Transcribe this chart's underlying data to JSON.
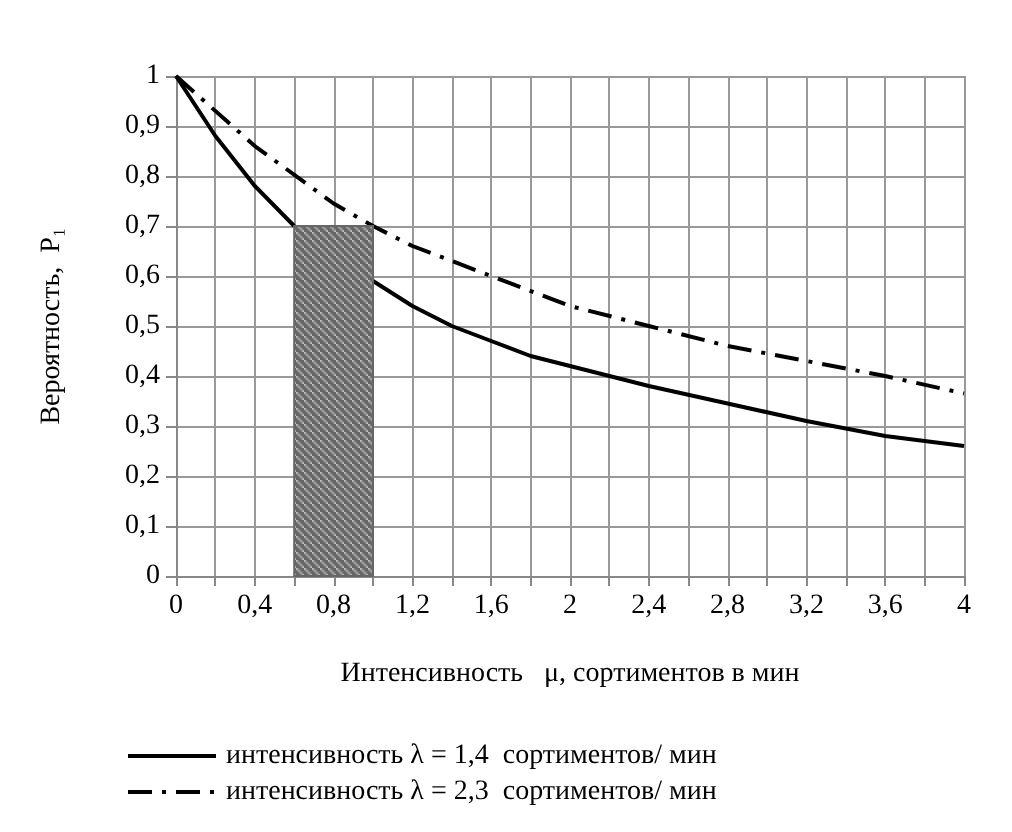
{
  "chart_data": {
    "type": "line",
    "xlabel": "Интенсивность   μ, сортиментов в мин",
    "ylabel": "Вероятность,  P₁",
    "xlim": [
      0,
      4
    ],
    "xticks": [
      0,
      {
        "value": 0.2,
        "label": null
      },
      {
        "value": 0.4,
        "label": "0,4"
      },
      {
        "value": 0.6,
        "label": null
      },
      {
        "value": 0.8,
        "label": "0,8"
      },
      {
        "value": 1.0,
        "label": null
      },
      {
        "value": 1.2,
        "label": "1,2"
      },
      {
        "value": 1.4,
        "label": null
      },
      {
        "value": 1.6,
        "label": "1,6"
      },
      {
        "value": 1.8,
        "label": null
      },
      2,
      {
        "value": 2.2,
        "label": null
      },
      {
        "value": 2.4,
        "label": "2,4"
      },
      {
        "value": 2.6,
        "label": null
      },
      {
        "value": 2.8,
        "label": "2,8"
      },
      {
        "value": 3.0,
        "label": null
      },
      {
        "value": 3.2,
        "label": "3,2"
      },
      {
        "value": 3.4,
        "label": null
      },
      {
        "value": 3.6,
        "label": "3,6"
      },
      {
        "value": 3.8,
        "label": null
      },
      4
    ],
    "ylim": [
      0,
      1
    ],
    "yticks": [
      0,
      {
        "value": 0.1,
        "label": "0,1"
      },
      {
        "value": 0.2,
        "label": "0,2"
      },
      {
        "value": 0.3,
        "label": "0,3"
      },
      {
        "value": 0.4,
        "label": "0,4"
      },
      {
        "value": 0.5,
        "label": "0,5"
      },
      {
        "value": 0.6,
        "label": "0,6"
      },
      {
        "value": 0.7,
        "label": "0,7"
      },
      {
        "value": 0.8,
        "label": "0,8"
      },
      {
        "value": 0.9,
        "label": "0,9"
      },
      1
    ],
    "grid": true,
    "legend": "bottom",
    "marker": "none",
    "series": [
      {
        "name": "интенсивность λ = 1,4  сортиментов/ мин",
        "color": "#000000",
        "line_style": "solid",
        "x": [
          0,
          0.2,
          0.4,
          0.6,
          0.8,
          1.0,
          1.2,
          1.4,
          1.6,
          1.8,
          2.0,
          2.4,
          2.8,
          3.2,
          3.6,
          4.0
        ],
        "values": [
          1,
          0.88,
          0.78,
          0.7,
          null,
          0.59,
          0.54,
          0.5,
          0.47,
          0.44,
          0.42,
          0.38,
          0.345,
          0.31,
          0.28,
          0.26
        ]
      },
      {
        "name": "интенсивность λ = 2,3  сортиментов/ мин",
        "color": "#000000",
        "line_style": "dashed",
        "x": [
          0,
          0.4,
          0.8,
          1.0,
          1.2,
          1.6,
          2.0,
          2.4,
          2.8,
          3.2,
          3.6,
          4.0
        ],
        "values": [
          1,
          0.86,
          0.745,
          0.7,
          0.66,
          0.6,
          0.54,
          0.5,
          0.46,
          0.43,
          0.4,
          0.365
        ]
      }
    ],
    "bands": [
      {
        "axis": "x",
        "from": 0.6,
        "to": 1.0,
        "color": "#666666"
      }
    ]
  }
}
